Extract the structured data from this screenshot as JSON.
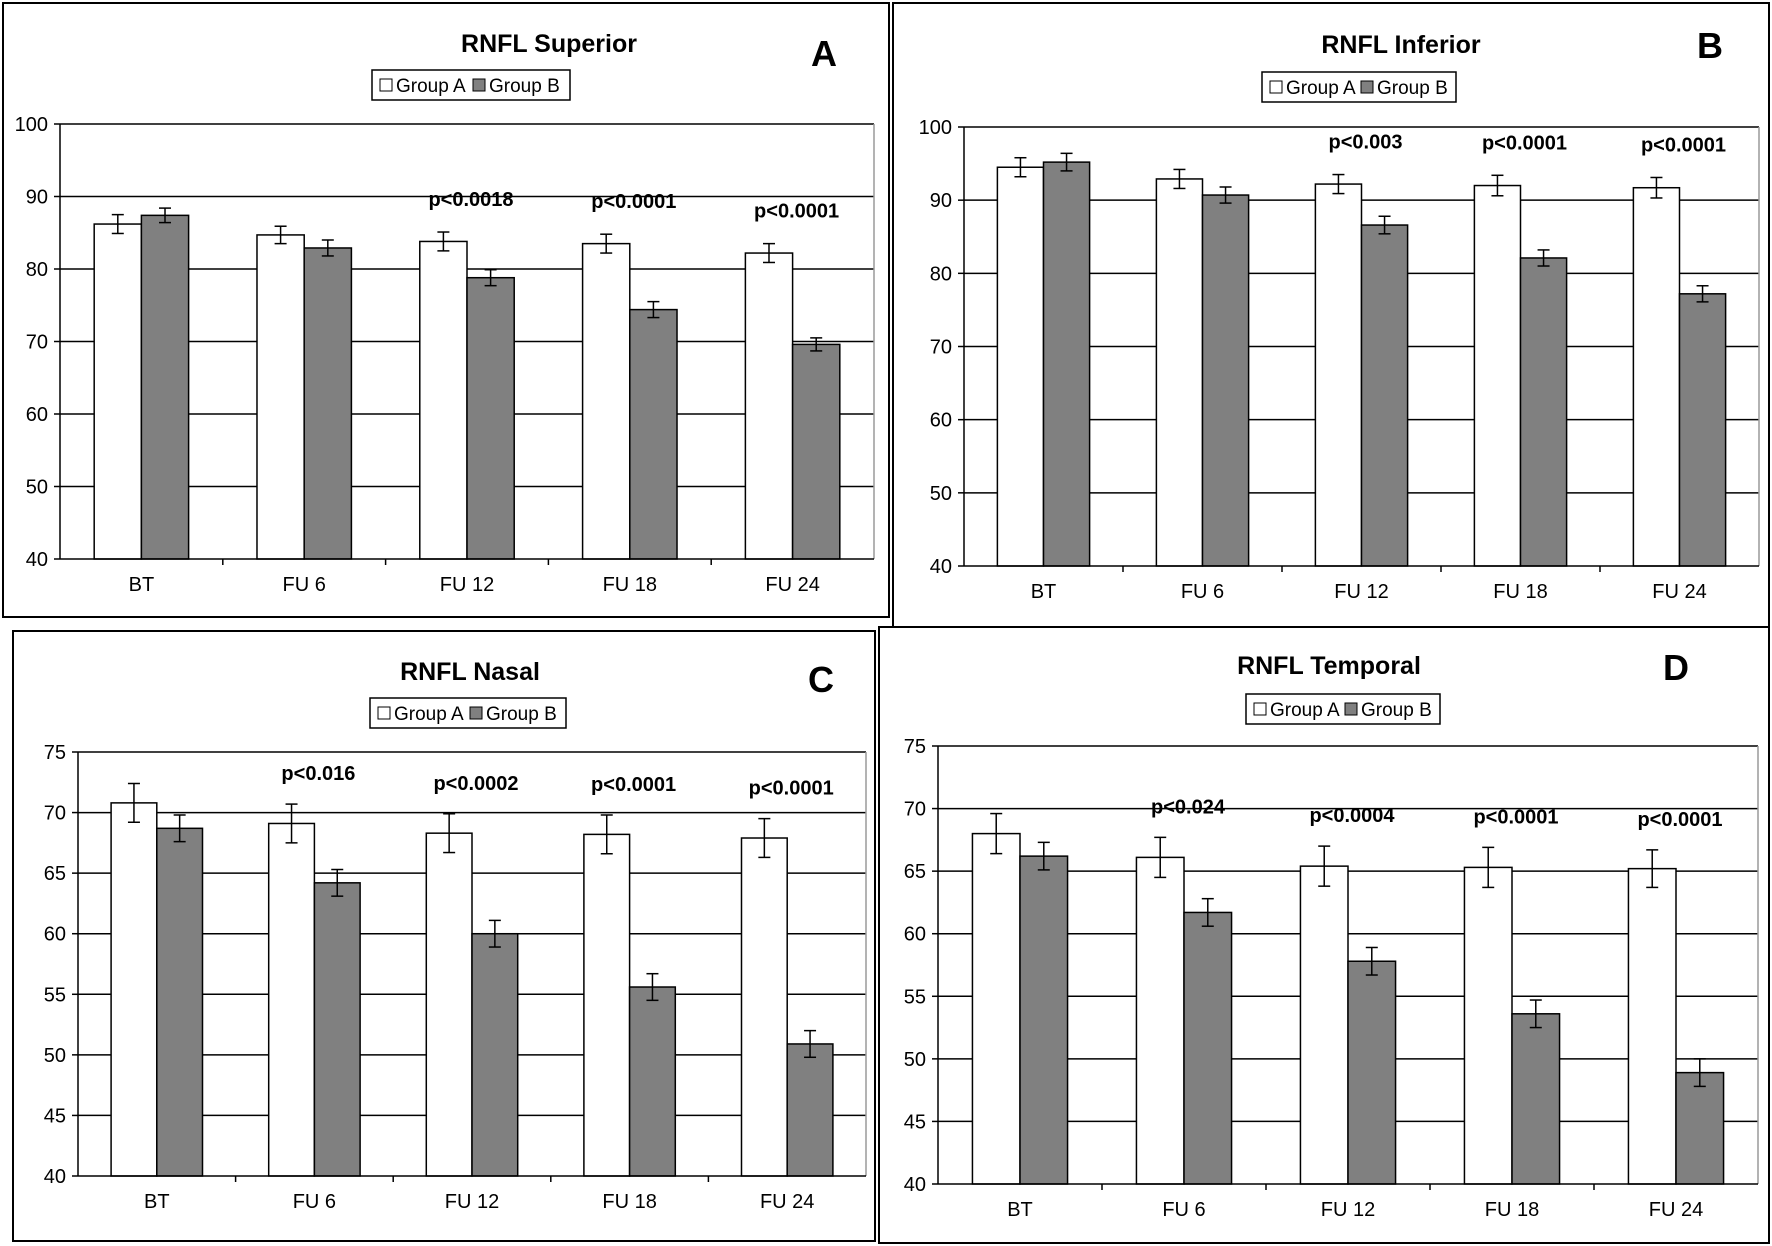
{
  "colors": {
    "group_a": "#ffffff",
    "group_b": "#808080",
    "axis": "#000000"
  },
  "legend": [
    "Group A",
    "Group B"
  ],
  "chart_data": [
    {
      "type": "bar",
      "letter": "A",
      "title": "RNFL Superior",
      "categories": [
        "BT",
        "FU 6",
        "FU 12",
        "FU 18",
        "FU 24"
      ],
      "ylim": [
        40,
        100
      ],
      "yticks": [
        40,
        50,
        60,
        70,
        80,
        90,
        100
      ],
      "series": [
        {
          "name": "Group A",
          "values": [
            86.2,
            84.7,
            83.8,
            83.5,
            82.2
          ],
          "errors": [
            1.3,
            1.2,
            1.3,
            1.3,
            1.3
          ]
        },
        {
          "name": "Group B",
          "values": [
            87.4,
            82.9,
            78.8,
            74.4,
            69.6
          ],
          "errors": [
            1.0,
            1.1,
            1.1,
            1.1,
            0.9
          ]
        }
      ],
      "annotations": [
        "",
        "",
        "p<0.0018",
        "p<0.0001",
        "p<0.0001"
      ]
    },
    {
      "type": "bar",
      "letter": "B",
      "title": "RNFL Inferior",
      "categories": [
        "BT",
        "FU 6",
        "FU 12",
        "FU 18",
        "FU 24"
      ],
      "ylim": [
        40,
        100
      ],
      "yticks": [
        40,
        50,
        60,
        70,
        80,
        90,
        100
      ],
      "series": [
        {
          "name": "Group A",
          "values": [
            94.5,
            92.9,
            92.2,
            92.0,
            91.7
          ],
          "errors": [
            1.3,
            1.3,
            1.3,
            1.4,
            1.4
          ]
        },
        {
          "name": "Group B",
          "values": [
            95.2,
            90.7,
            86.6,
            82.1,
            77.2
          ],
          "errors": [
            1.2,
            1.1,
            1.2,
            1.1,
            1.1
          ]
        }
      ],
      "annotations": [
        "",
        "",
        "p<0.003",
        "p<0.0001",
        "p<0.0001"
      ]
    },
    {
      "type": "bar",
      "letter": "C",
      "title": "RNFL Nasal",
      "categories": [
        "BT",
        "FU 6",
        "FU 12",
        "FU 18",
        "FU 24"
      ],
      "ylim": [
        40,
        75
      ],
      "yticks": [
        40,
        45,
        50,
        55,
        60,
        65,
        70,
        75
      ],
      "series": [
        {
          "name": "Group A",
          "values": [
            70.8,
            69.1,
            68.3,
            68.2,
            67.9
          ],
          "errors": [
            1.6,
            1.6,
            1.6,
            1.6,
            1.6
          ]
        },
        {
          "name": "Group B",
          "values": [
            68.7,
            64.2,
            60.0,
            55.6,
            50.9
          ],
          "errors": [
            1.1,
            1.1,
            1.1,
            1.1,
            1.1
          ]
        }
      ],
      "annotations": [
        "",
        "p<0.016",
        "p<0.0002",
        "p<0.0001",
        "p<0.0001"
      ]
    },
    {
      "type": "bar",
      "letter": "D",
      "title": "RNFL Temporal",
      "categories": [
        "BT",
        "FU 6",
        "FU 12",
        "FU 18",
        "FU 24"
      ],
      "ylim": [
        40,
        75
      ],
      "yticks": [
        40,
        45,
        50,
        55,
        60,
        65,
        70,
        75
      ],
      "series": [
        {
          "name": "Group A",
          "values": [
            68.0,
            66.1,
            65.4,
            65.3,
            65.2
          ],
          "errors": [
            1.6,
            1.6,
            1.6,
            1.6,
            1.5
          ]
        },
        {
          "name": "Group B",
          "values": [
            66.2,
            61.7,
            57.8,
            53.6,
            48.9
          ],
          "errors": [
            1.1,
            1.1,
            1.1,
            1.1,
            1.1
          ]
        }
      ],
      "annotations": [
        "",
        "p<0.024",
        "p<0.0004",
        "p<0.0001",
        "p<0.0001"
      ]
    }
  ]
}
